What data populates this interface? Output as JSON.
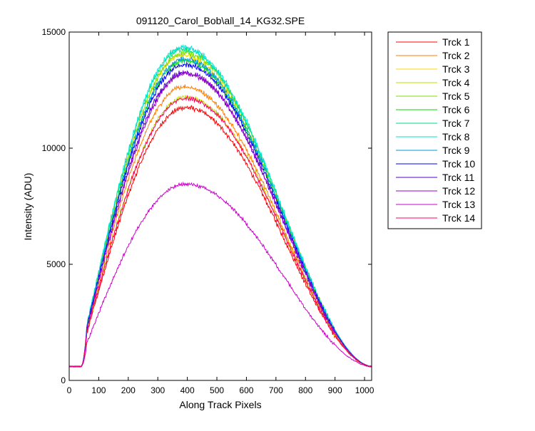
{
  "chart_data": {
    "type": "line",
    "title": "091120_Carol_Bob\\all_14_KG32.SPE",
    "xlabel": "Along Track Pixels",
    "ylabel": "Intensity (ADU)",
    "xlim": [
      0,
      1024
    ],
    "ylim": [
      0,
      15000
    ],
    "xticks": [
      0,
      100,
      200,
      300,
      400,
      500,
      600,
      700,
      800,
      900,
      1000
    ],
    "yticks": [
      0,
      5000,
      10000,
      15000
    ],
    "grid": false,
    "legend_position": "outside-right",
    "series": [
      {
        "name": "Trck 1",
        "color": "#ff0000",
        "peak": 11750,
        "peak_x": 395
      },
      {
        "name": "Trck 2",
        "color": "#ff7f00",
        "peak": 12650,
        "peak_x": 390
      },
      {
        "name": "Trck 3",
        "color": "#ffd700",
        "peak": 14000,
        "peak_x": 385
      },
      {
        "name": "Trck 4",
        "color": "#bfdf00",
        "peak": 12200,
        "peak_x": 395
      },
      {
        "name": "Trck 5",
        "color": "#7fdf00",
        "peak": 14100,
        "peak_x": 390
      },
      {
        "name": "Trck 6",
        "color": "#00df00",
        "peak": 13750,
        "peak_x": 390
      },
      {
        "name": "Trck 7",
        "color": "#00df7f",
        "peak": 14250,
        "peak_x": 385
      },
      {
        "name": "Trck 8",
        "color": "#00e5d5",
        "peak": 14350,
        "peak_x": 385
      },
      {
        "name": "Trck 9",
        "color": "#0099dd",
        "peak": 13850,
        "peak_x": 390
      },
      {
        "name": "Trck 10",
        "color": "#0000ff",
        "peak": 13600,
        "peak_x": 390
      },
      {
        "name": "Trck 11",
        "color": "#5500cc",
        "peak": 13250,
        "peak_x": 390
      },
      {
        "name": "Trck 12",
        "color": "#9900cc",
        "peak": 13200,
        "peak_x": 395
      },
      {
        "name": "Trck 13",
        "color": "#cc00cc",
        "peak": 8450,
        "peak_x": 395
      },
      {
        "name": "Trck 14",
        "color": "#ff0066",
        "peak": 12150,
        "peak_x": 395
      }
    ]
  }
}
